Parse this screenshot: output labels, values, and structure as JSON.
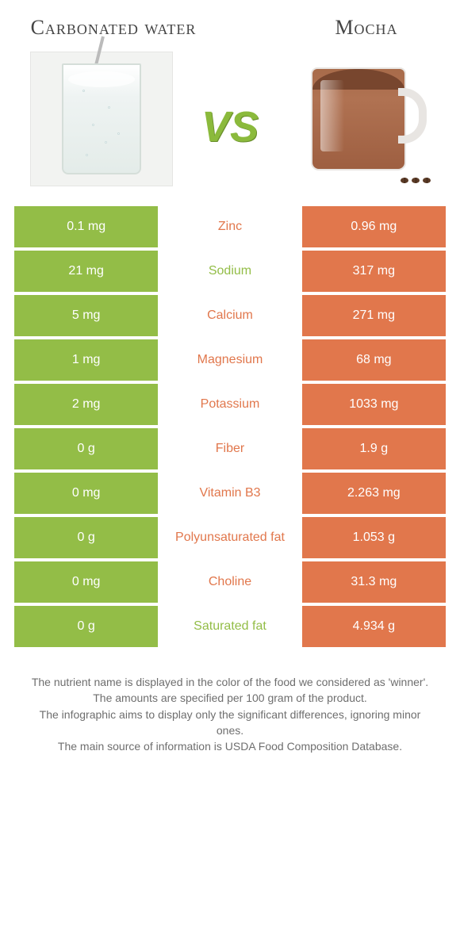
{
  "colors": {
    "left": "#93bd47",
    "right": "#e1774c",
    "vs": "#8bba3c",
    "title": "#444444",
    "footer_text": "#6e6e6e",
    "background": "#ffffff"
  },
  "header": {
    "left_title": "Carbonated water",
    "right_title": "Mocha",
    "vs_label": "VS"
  },
  "rows": [
    {
      "left": "0.1 mg",
      "name": "Zinc",
      "right": "0.96 mg",
      "winner": "right"
    },
    {
      "left": "21 mg",
      "name": "Sodium",
      "right": "317 mg",
      "winner": "left"
    },
    {
      "left": "5 mg",
      "name": "Calcium",
      "right": "271 mg",
      "winner": "right"
    },
    {
      "left": "1 mg",
      "name": "Magnesium",
      "right": "68 mg",
      "winner": "right"
    },
    {
      "left": "2 mg",
      "name": "Potassium",
      "right": "1033 mg",
      "winner": "right"
    },
    {
      "left": "0 g",
      "name": "Fiber",
      "right": "1.9 g",
      "winner": "right"
    },
    {
      "left": "0 mg",
      "name": "Vitamin B3",
      "right": "2.263 mg",
      "winner": "right"
    },
    {
      "left": "0 g",
      "name": "Polyunsaturated fat",
      "right": "1.053 g",
      "winner": "right"
    },
    {
      "left": "0 mg",
      "name": "Choline",
      "right": "31.3 mg",
      "winner": "right"
    },
    {
      "left": "0 g",
      "name": "Saturated fat",
      "right": "4.934 g",
      "winner": "left"
    }
  ],
  "footer": {
    "line1": "The nutrient name is displayed in the color of the food we considered as 'winner'.",
    "line2": "The amounts are specified per 100 gram of the product.",
    "line3": "The infographic aims to display only the significant differences, ignoring minor ones.",
    "line4": "The main source of information is USDA Food Composition Database."
  }
}
